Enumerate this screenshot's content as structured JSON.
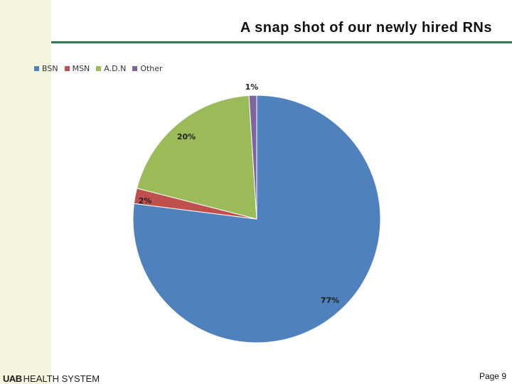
{
  "slide": {
    "title": "A snap shot of our newly hired RNs",
    "footer_logo": {
      "mark": "UAB",
      "text": "HEALTH SYSTEM"
    },
    "page_label": "Page 9"
  },
  "chart_data": {
    "type": "pie",
    "title": "A snap shot of our newly hired RNs",
    "legend_position": "top-left",
    "categories": [
      "BSN",
      "MSN",
      "A.D.N",
      "Other"
    ],
    "values": [
      77,
      2,
      20,
      1
    ],
    "labels": [
      "77%",
      "2%",
      "20%",
      "1%"
    ],
    "colors": [
      "#4f81bd",
      "#c0504d",
      "#9bbb59",
      "#8064a2"
    ]
  }
}
